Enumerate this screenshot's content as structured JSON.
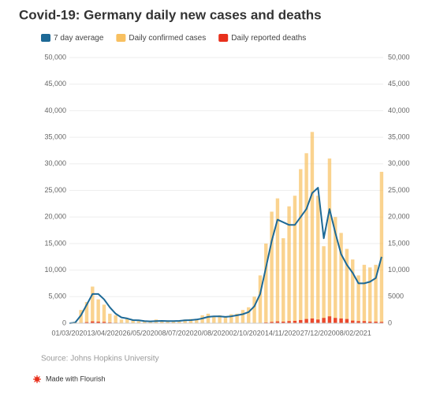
{
  "chart_data": {
    "type": "combo",
    "title": "Covid-19: Germany daily new cases and deaths",
    "source": "Source: Johns Hopkins University",
    "credit": "Made with Flourish",
    "x": [
      "01/03/2020",
      "08/03/2020",
      "15/03/2020",
      "22/03/2020",
      "29/03/2020",
      "05/04/2020",
      "12/04/2020",
      "19/04/2020",
      "26/04/2020",
      "03/05/2020",
      "10/05/2020",
      "17/05/2020",
      "24/05/2020",
      "31/05/2020",
      "07/06/2020",
      "14/06/2020",
      "21/06/2020",
      "28/06/2020",
      "05/07/2020",
      "12/07/2020",
      "19/07/2020",
      "26/07/2020",
      "02/08/2020",
      "09/08/2020",
      "16/08/2020",
      "23/08/2020",
      "30/08/2020",
      "06/09/2020",
      "13/09/2020",
      "20/09/2020",
      "27/09/2020",
      "04/10/2020",
      "11/10/2020",
      "18/10/2020",
      "25/10/2020",
      "01/11/2020",
      "08/11/2020",
      "15/11/2020",
      "22/11/2020",
      "29/11/2020",
      "06/12/2020",
      "13/12/2020",
      "20/12/2020",
      "27/12/2020",
      "03/01/2021",
      "10/01/2021",
      "17/01/2021",
      "24/01/2021",
      "31/01/2021",
      "07/02/2021",
      "14/02/2021",
      "21/02/2021",
      "28/02/2021",
      "07/03/2021",
      "14/03/2021"
    ],
    "xlim": [
      "01/03/2020",
      "16/03/2021"
    ],
    "xticks": [
      "01/03/2020",
      "13/04/2020",
      "26/05/2020",
      "08/07/2020",
      "20/08/2020",
      "02/10/2020",
      "14/11/2020",
      "27/12/2020",
      "08/02/2021"
    ],
    "series": [
      {
        "name": "7 day average",
        "kind": "line",
        "color": "#1d6996",
        "values": [
          0,
          100,
          1500,
          3500,
          5500,
          5500,
          4500,
          3000,
          1800,
          1100,
          900,
          600,
          550,
          400,
          350,
          400,
          450,
          400,
          400,
          450,
          550,
          600,
          700,
          900,
          1200,
          1300,
          1300,
          1200,
          1300,
          1500,
          1700,
          2100,
          3200,
          5500,
          10500,
          15500,
          19500,
          19000,
          18500,
          18500,
          20000,
          21500,
          24500,
          25500,
          16000,
          21500,
          17000,
          13000,
          11000,
          9500,
          7500,
          7500,
          7800,
          8500,
          12500
        ]
      },
      {
        "name": "Daily confirmed cases",
        "kind": "bar",
        "color": "#f8c060",
        "values": [
          0,
          300,
          2500,
          4000,
          6900,
          4500,
          3500,
          1800,
          1500,
          700,
          900,
          500,
          400,
          300,
          250,
          700,
          500,
          300,
          400,
          500,
          700,
          800,
          600,
          1500,
          1800,
          1200,
          1500,
          1200,
          1700,
          1800,
          2500,
          3000,
          5000,
          9000,
          15000,
          21000,
          23500,
          16000,
          22000,
          24000,
          29000,
          32000,
          36000,
          24000,
          14500,
          31000,
          20000,
          17000,
          14000,
          12000,
          9000,
          11000,
          10500,
          11000,
          28500
        ]
      },
      {
        "name": "Daily reported deaths",
        "kind": "bar",
        "axis": "y2",
        "color": "#e8301c",
        "values": [
          0,
          0,
          50,
          200,
          350,
          300,
          250,
          150,
          100,
          50,
          30,
          20,
          10,
          10,
          5,
          5,
          5,
          5,
          5,
          5,
          5,
          5,
          5,
          5,
          5,
          5,
          5,
          5,
          5,
          10,
          10,
          15,
          30,
          50,
          150,
          250,
          350,
          300,
          400,
          450,
          600,
          800,
          900,
          700,
          1000,
          1300,
          1000,
          900,
          800,
          500,
          400,
          400,
          300,
          300,
          250
        ]
      }
    ],
    "ylim": [
      0,
      50000
    ],
    "yticks": [
      0,
      {
        "value": 5000,
        "label": "5,000"
      },
      {
        "value": 10000,
        "label": "10,000"
      },
      {
        "value": 15000,
        "label": "15,000"
      },
      {
        "value": 20000,
        "label": "20,000"
      },
      {
        "value": 25000,
        "label": "25,000"
      },
      {
        "value": 30000,
        "label": "30,000"
      },
      {
        "value": 35000,
        "label": "35,000"
      },
      {
        "value": 40000,
        "label": "40,000"
      },
      {
        "value": 45000,
        "label": "45,000"
      },
      {
        "value": 50000,
        "label": "50,000"
      }
    ],
    "y2lim": [
      0,
      50000
    ],
    "y2ticks": [
      0,
      {
        "value": 5000,
        "label": "5000"
      },
      {
        "value": 10000,
        "label": "10,000"
      },
      {
        "value": 15000,
        "label": "15,000"
      },
      {
        "value": 20000,
        "label": "20,000"
      },
      {
        "value": 25000,
        "label": "25,000"
      },
      {
        "value": 30000,
        "label": "30,000"
      },
      {
        "value": 35000,
        "label": "35,000"
      },
      {
        "value": 40000,
        "label": "40,000"
      },
      {
        "value": 45000,
        "label": "45,000"
      },
      {
        "value": 50000,
        "label": "50,000"
      }
    ],
    "grid": true
  }
}
